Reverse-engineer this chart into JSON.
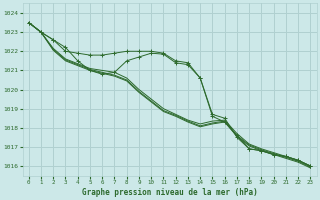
{
  "title": "Graphe pression niveau de la mer (hPa)",
  "background_color": "#cce8e8",
  "grid_color": "#b0d0d0",
  "line_color": "#2d6a2d",
  "x_values": [
    0,
    1,
    2,
    3,
    4,
    5,
    6,
    7,
    8,
    9,
    10,
    11,
    12,
    13,
    14,
    15,
    16,
    17,
    18,
    19,
    20,
    21,
    22,
    23
  ],
  "series_wavy": [
    1023.5,
    1023.0,
    1022.6,
    1022.0,
    1021.9,
    1021.8,
    1021.8,
    1021.9,
    1022.0,
    1022.0,
    1022.0,
    1021.9,
    1021.5,
    1021.4,
    1020.6,
    1018.7,
    1018.5,
    1017.5,
    1016.9,
    1016.8,
    1016.6,
    1016.5,
    1016.3,
    1016.0
  ],
  "series_steady1": [
    1023.5,
    1023.0,
    1022.15,
    1021.6,
    1021.35,
    1021.1,
    1021.0,
    1020.9,
    1020.6,
    1020.0,
    1019.5,
    1019.0,
    1018.7,
    1018.4,
    1018.2,
    1018.35,
    1018.4,
    1017.7,
    1017.15,
    1016.9,
    1016.7,
    1016.5,
    1016.3,
    1016.0
  ],
  "series_steady2": [
    1023.5,
    1023.0,
    1022.1,
    1021.55,
    1021.3,
    1021.05,
    1020.9,
    1020.75,
    1020.5,
    1019.9,
    1019.4,
    1018.9,
    1018.65,
    1018.35,
    1018.1,
    1018.25,
    1018.35,
    1017.6,
    1017.1,
    1016.85,
    1016.65,
    1016.45,
    1016.25,
    1015.95
  ],
  "series_steady3": [
    1023.5,
    1023.0,
    1022.05,
    1021.5,
    1021.25,
    1021.0,
    1020.85,
    1020.7,
    1020.45,
    1019.85,
    1019.35,
    1018.85,
    1018.6,
    1018.3,
    1018.05,
    1018.2,
    1018.3,
    1017.55,
    1017.05,
    1016.8,
    1016.6,
    1016.4,
    1016.2,
    1015.9
  ],
  "series_upper": [
    1023.5,
    1023.0,
    1022.6,
    1022.2,
    1021.5,
    1021.0,
    1020.8,
    1020.9,
    1021.5,
    1021.7,
    1021.9,
    1021.85,
    1021.4,
    1021.3,
    1020.6,
    1018.6,
    1018.3,
    1017.6,
    1016.9,
    1016.8,
    1016.6,
    1016.5,
    1016.3,
    1016.0
  ],
  "ylim": [
    1015.5,
    1024.5
  ],
  "yticks": [
    1016,
    1017,
    1018,
    1019,
    1020,
    1021,
    1022,
    1023,
    1024
  ],
  "xlim": [
    -0.5,
    23.5
  ],
  "figsize": [
    3.2,
    2.0
  ],
  "dpi": 100
}
